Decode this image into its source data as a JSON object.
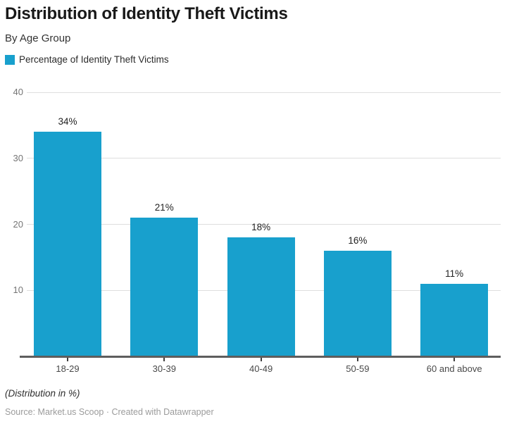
{
  "header": {
    "title": "Distribution of Identity Theft Victims",
    "subtitle": "By Age Group"
  },
  "legend": {
    "label": "Percentage of Identity Theft Victims",
    "swatch_color": "#18a0cd"
  },
  "chart_data": {
    "type": "bar",
    "title": "Distribution of Identity Theft Victims",
    "subtitle": "By Age Group",
    "series_name": "Percentage of Identity Theft Victims",
    "categories": [
      "18-29",
      "30-39",
      "40-49",
      "50-59",
      "60 and above"
    ],
    "values": [
      34,
      21,
      18,
      16,
      11
    ],
    "value_labels": [
      "34%",
      "21%",
      "18%",
      "16%",
      "11%"
    ],
    "value_suffix": "%",
    "xlabel": "",
    "ylabel": "",
    "ylim": [
      0,
      40
    ],
    "yticks": [
      10,
      20,
      30,
      40
    ],
    "grid": "horizontal",
    "legend_position": "top-left",
    "bar_color": "#18a0cd"
  },
  "footer": {
    "note": "(Distribution in %)",
    "source": "Source: Market.us Scoop · Created with Datawrapper"
  },
  "colors": {
    "bar": "#18a0cd",
    "gridline": "#dedede",
    "baseline": "#5e5e5e",
    "title_text": "#191919",
    "axis_text": "#757575",
    "category_text": "#494949",
    "source_text": "#9b9b9b"
  }
}
